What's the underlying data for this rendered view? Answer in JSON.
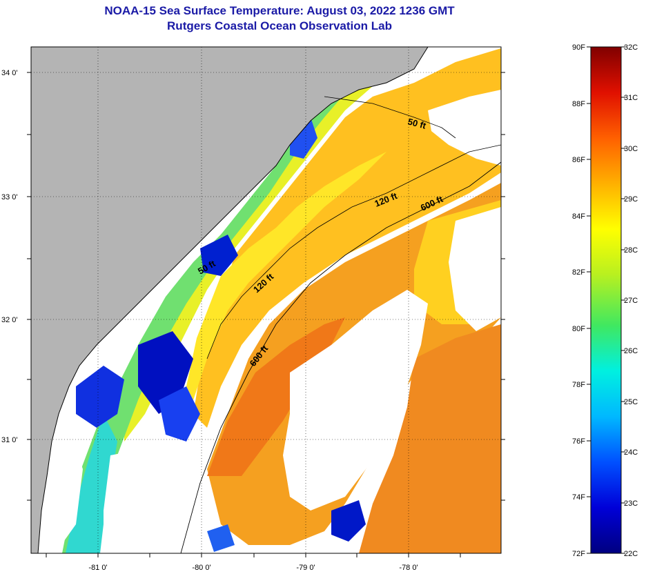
{
  "title": "NOAA-15 Sea Surface Temperature:  August 03, 2022 1236 GMT",
  "subtitle": "Rutgers Coastal Ocean Observation Lab",
  "latitude_labels": [
    "34 0'",
    "33 0'",
    "32 0'",
    "31 0'"
  ],
  "longitude_labels": [
    "-81 0'",
    "-80 0'",
    "-79 0'",
    "-78 0'"
  ],
  "contour_labels": [
    "50 ft",
    "120 ft",
    "600 ft",
    "120 ft",
    "600 ft",
    "50 ft"
  ],
  "colorbar": {
    "fahrenheit": [
      "90F",
      "88F",
      "86F",
      "84F",
      "82F",
      "80F",
      "78F",
      "76F",
      "74F",
      "72F"
    ],
    "celsius": [
      "32C",
      "31C",
      "30C",
      "29C",
      "28C",
      "27C",
      "26C",
      "25C",
      "24C",
      "23C",
      "22C"
    ],
    "stops": [
      "#000080",
      "#0000d8",
      "#0050ff",
      "#00b8ff",
      "#00f0e0",
      "#40e860",
      "#b8f020",
      "#ffff00",
      "#ffb000",
      "#ff6000",
      "#e01000",
      "#800000"
    ]
  },
  "colors": {
    "land": "#b4b4b4",
    "cloud": "#ffffff",
    "title": "#1a1aa6"
  }
}
